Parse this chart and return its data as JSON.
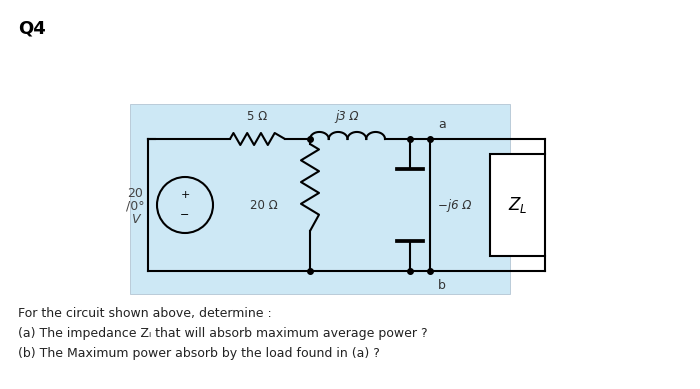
{
  "title": "Q4",
  "bg_color": "#cde8f5",
  "white_bg": "#ffffff",
  "source_voltage": "20",
  "source_angle": "/0°",
  "source_v": "V",
  "resistor_series": "5 Ω",
  "inductor_label": "j3 Ω",
  "resistor_parallel": "20 Ω",
  "capacitor_label": "−j6 Ω",
  "load_label": "Z_L",
  "node_a": "a",
  "node_b": "b",
  "question_line1": "For the circuit shown above, determine :",
  "question_line2": "(a) The impedance Zₗ that will absorb maximum average power ?",
  "question_line3": "(b) The Maximum power absorb by the load found in (a) ?"
}
